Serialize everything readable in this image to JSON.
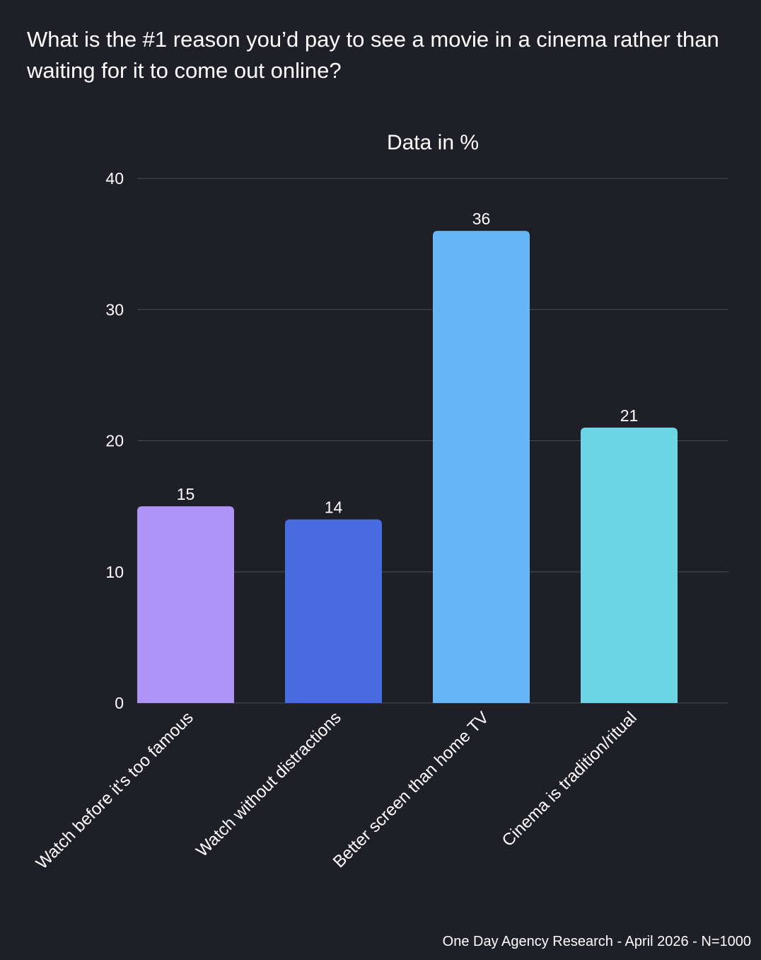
{
  "question": "What is the #1 reason you’d pay to see a movie in a cinema rather than waiting for it to come out online?",
  "footer": "One Day Agency Research - April 2026 - N=1000",
  "colors": {
    "background": "#1f2027",
    "grid": "#4a4b53",
    "text": "#ffffff",
    "bars": [
      "#af93f7",
      "#486be0",
      "#67b7f8",
      "#6cd6e6"
    ]
  },
  "chart_data": {
    "type": "bar",
    "title": "Data in %",
    "categories": [
      "Watch before it's too famous",
      "Watch without distractions",
      "Better screen than home TV",
      "Cinema is tradition/ritual"
    ],
    "values": [
      15,
      14,
      36,
      21
    ],
    "ylim": [
      0,
      40
    ],
    "yticks": [
      0,
      10,
      20,
      30,
      40
    ],
    "grid": true,
    "legend": "none"
  }
}
